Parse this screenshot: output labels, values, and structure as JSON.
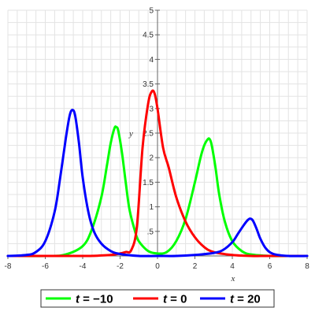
{
  "chart_data": {
    "type": "line",
    "title": "",
    "xlabel": "x",
    "ylabel": "y",
    "xlim": [
      -8,
      8
    ],
    "ylim": [
      0,
      5
    ],
    "x_ticks": [
      -8,
      -6,
      -4,
      -2,
      0,
      2,
      4,
      6,
      8
    ],
    "y_ticks": [
      0.5,
      1,
      1.5,
      2,
      2.5,
      3,
      3.5,
      4,
      4.5,
      5
    ],
    "y_tick_labels": [
      ".5",
      "1",
      "1.5",
      "2",
      "2.5",
      "3",
      "3.5",
      "4",
      "4.5",
      "5"
    ],
    "grid": true,
    "legend_position": "bottom",
    "series": [
      {
        "name": "t = −10",
        "legend_var": "t",
        "legend_rest": " = −10",
        "color": "#00ff00",
        "x": [
          -8,
          -6,
          -5,
          -4,
          -3.5,
          -3,
          -2.7,
          -2.5,
          -2.3,
          -2.2,
          -2.1,
          -1.9,
          -1.7,
          -1.5,
          -1.2,
          -1,
          -0.5,
          0,
          0.5,
          1,
          1.5,
          2,
          2.3,
          2.5,
          2.7,
          2.8,
          2.9,
          3.1,
          3.3,
          3.6,
          4,
          4.5,
          5,
          6,
          7,
          8
        ],
        "y": [
          0,
          0,
          0.02,
          0.2,
          0.55,
          1.2,
          1.85,
          2.3,
          2.6,
          2.62,
          2.55,
          2.1,
          1.5,
          0.95,
          0.5,
          0.3,
          0.1,
          0.05,
          0.08,
          0.3,
          0.75,
          1.5,
          2.0,
          2.25,
          2.38,
          2.37,
          2.25,
          1.8,
          1.25,
          0.7,
          0.3,
          0.1,
          0.03,
          0,
          0,
          0
        ]
      },
      {
        "name": "t = 0",
        "legend_var": "t",
        "legend_rest": " = 0",
        "color": "#ff0000",
        "x": [
          -8,
          -4,
          -3,
          -2.5,
          -2,
          -1.7,
          -1.4,
          -1.1,
          -0.8,
          -0.5,
          -0.3,
          -0.15,
          0,
          0.3,
          0.6,
          1,
          1.5,
          2,
          2.5,
          3,
          4,
          5,
          6,
          8
        ],
        "y": [
          0,
          0,
          0.01,
          0.02,
          0.05,
          0.08,
          0.12,
          0.6,
          2.2,
          3.1,
          3.35,
          3.3,
          3.0,
          2.2,
          1.8,
          1.2,
          0.7,
          0.38,
          0.18,
          0.08,
          0.02,
          0,
          0,
          0
        ]
      },
      {
        "name": "t = 20",
        "legend_var": "t",
        "legend_rest": " = 20",
        "color": "#0000ff",
        "x": [
          -8,
          -7,
          -6.5,
          -6,
          -5.5,
          -5.2,
          -4.9,
          -4.7,
          -4.55,
          -4.4,
          -4.2,
          -4,
          -3.7,
          -3.4,
          -3,
          -2.5,
          -2,
          -1,
          0,
          1,
          2,
          3,
          3.5,
          4,
          4.3,
          4.6,
          4.8,
          4.95,
          5.1,
          5.3,
          5.5,
          5.8,
          6.2,
          7,
          8
        ],
        "y": [
          0,
          0.02,
          0.08,
          0.3,
          0.9,
          1.6,
          2.4,
          2.85,
          2.97,
          2.85,
          2.3,
          1.6,
          0.9,
          0.5,
          0.25,
          0.1,
          0.04,
          0,
          0,
          0,
          0.02,
          0.06,
          0.12,
          0.28,
          0.45,
          0.62,
          0.72,
          0.76,
          0.72,
          0.55,
          0.35,
          0.15,
          0.04,
          0,
          0
        ]
      }
    ]
  }
}
